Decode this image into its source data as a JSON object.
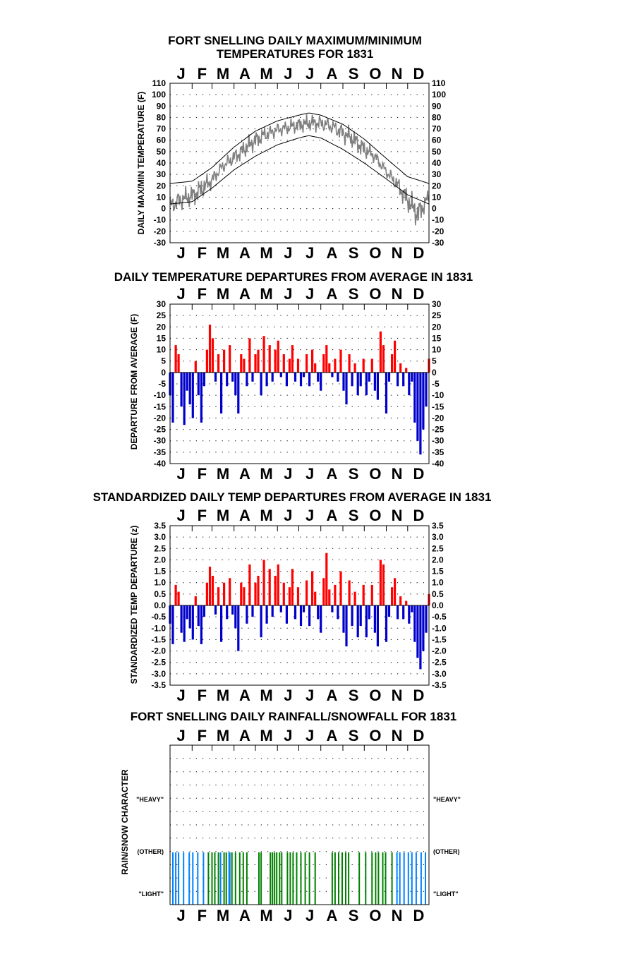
{
  "months": [
    "J",
    "F",
    "M",
    "A",
    "M",
    "J",
    "J",
    "A",
    "S",
    "O",
    "N",
    "D"
  ],
  "colors": {
    "warm": "#ff0000",
    "cold": "#0000cc",
    "trace": "#808080",
    "normal": "#000000",
    "rain": "#008000",
    "snow": "#0080ff",
    "grid": "#000000"
  },
  "chart_data": [
    {
      "type": "line",
      "title_line1": "FORT SNELLING DAILY MAXIMUM/MINIMUM",
      "title_line2": "TEMPERATURES FOR 1831",
      "ylabel": "DAILY MAX/MIN TEMPERATURE (F)",
      "ylim": [
        -30,
        110
      ],
      "yticks": [
        "110",
        "100",
        "90",
        "80",
        "70",
        "60",
        "50",
        "40",
        "30",
        "20",
        "10",
        "0",
        "-10",
        "-20",
        "-30"
      ],
      "ytick_values": [
        110,
        100,
        90,
        80,
        70,
        60,
        50,
        40,
        30,
        20,
        10,
        0,
        -10,
        -20,
        -30
      ],
      "grid": true,
      "series": [
        {
          "role": "daily max",
          "x_day": [
            1,
            15,
            32,
            46,
            60,
            74,
            91,
            105,
            121,
            135,
            152,
            166,
            182,
            196,
            213,
            227,
            244,
            258,
            274,
            288,
            305,
            319,
            335,
            349,
            365
          ],
          "values": [
            15,
            20,
            22,
            30,
            35,
            45,
            55,
            62,
            70,
            75,
            78,
            80,
            82,
            84,
            85,
            83,
            78,
            72,
            62,
            55,
            40,
            32,
            20,
            10,
            20
          ]
        },
        {
          "role": "daily min",
          "x_day": [
            1,
            15,
            32,
            46,
            60,
            74,
            91,
            105,
            121,
            135,
            152,
            166,
            182,
            196,
            213,
            227,
            244,
            258,
            274,
            288,
            305,
            319,
            335,
            349,
            365
          ],
          "values": [
            -10,
            -5,
            0,
            5,
            15,
            28,
            35,
            42,
            50,
            55,
            60,
            62,
            65,
            66,
            65,
            62,
            55,
            50,
            42,
            38,
            25,
            12,
            -5,
            -20,
            0
          ]
        },
        {
          "role": "normal max",
          "x_day": [
            1,
            32,
            60,
            91,
            121,
            152,
            182,
            196,
            213,
            244,
            274,
            305,
            335,
            365
          ],
          "values": [
            22,
            24,
            36,
            54,
            68,
            77,
            82,
            84,
            82,
            74,
            61,
            44,
            28,
            22
          ]
        },
        {
          "role": "normal min",
          "x_day": [
            1,
            32,
            60,
            91,
            121,
            152,
            182,
            196,
            213,
            244,
            274,
            305,
            335,
            365
          ],
          "values": [
            4,
            6,
            18,
            34,
            46,
            56,
            62,
            64,
            62,
            52,
            40,
            26,
            12,
            4
          ]
        }
      ]
    },
    {
      "type": "bar",
      "title": "DAILY TEMPERATURE DEPARTURES FROM AVERAGE IN 1831",
      "ylabel": "DEPARTURE FROM AVERAGE (F)",
      "ylim": [
        -40,
        30
      ],
      "yticks": [
        "30",
        "25",
        "20",
        "15",
        "10",
        "5",
        "0",
        "-5",
        "-10",
        "-15",
        "-20",
        "-25",
        "-30",
        "-35",
        "-40"
      ],
      "ytick_values": [
        30,
        25,
        20,
        15,
        10,
        5,
        0,
        -5,
        -10,
        -15,
        -20,
        -25,
        -30,
        -35,
        -40
      ],
      "grid": true,
      "x_day": [
        1,
        5,
        9,
        13,
        17,
        21,
        25,
        29,
        33,
        37,
        41,
        45,
        49,
        53,
        57,
        61,
        65,
        69,
        73,
        77,
        81,
        85,
        89,
        93,
        97,
        101,
        105,
        109,
        113,
        117,
        121,
        125,
        129,
        133,
        137,
        141,
        145,
        149,
        153,
        157,
        161,
        165,
        169,
        173,
        177,
        181,
        185,
        189,
        193,
        197,
        201,
        205,
        209,
        213,
        217,
        221,
        225,
        229,
        233,
        237,
        241,
        245,
        249,
        253,
        257,
        261,
        265,
        269,
        273,
        277,
        281,
        285,
        289,
        293,
        297,
        301,
        305,
        309,
        313,
        317,
        321,
        325,
        329,
        333,
        337,
        341,
        345,
        349,
        353,
        357,
        361,
        365
      ],
      "values": [
        -10,
        -22,
        12,
        8,
        -15,
        -23,
        -8,
        -14,
        -20,
        5,
        -10,
        -22,
        -6,
        10,
        21,
        15,
        -4,
        8,
        -18,
        10,
        -6,
        12,
        -4,
        -10,
        -18,
        8,
        6,
        -6,
        15,
        -4,
        8,
        10,
        -10,
        16,
        -6,
        12,
        -4,
        10,
        14,
        -2,
        8,
        -6,
        6,
        12,
        -4,
        6,
        -6,
        -2,
        8,
        -6,
        10,
        4,
        -4,
        -8,
        8,
        12,
        4,
        -2,
        6,
        -4,
        10,
        -8,
        -14,
        8,
        -6,
        4,
        -10,
        -6,
        6,
        -10,
        -4,
        6,
        -8,
        -12,
        18,
        12,
        -18,
        -4,
        8,
        14,
        -6,
        4,
        -6,
        2,
        -10,
        -4,
        -22,
        -30,
        -36,
        -25,
        -15,
        6
      ]
    },
    {
      "type": "bar",
      "title": "STANDARDIZED DAILY TEMP DEPARTURES FROM AVERAGE IN 1831",
      "ylabel": "STANDARDIZED TEMP DEPARTURE (z)",
      "ylim": [
        -3.5,
        3.5
      ],
      "yticks": [
        "3.5",
        "3.0",
        "2.5",
        "2.0",
        "1.5",
        "1.0",
        "0.5",
        "0.0",
        "-0.5",
        "-1.0",
        "-1.5",
        "-2.0",
        "-2.5",
        "-3.0",
        "-3.5"
      ],
      "ytick_values": [
        3.5,
        3.0,
        2.5,
        2.0,
        1.5,
        1.0,
        0.5,
        0.0,
        -0.5,
        -1.0,
        -1.5,
        -2.0,
        -2.5,
        -3.0,
        -3.5
      ],
      "grid": true,
      "x_day": [
        1,
        5,
        9,
        13,
        17,
        21,
        25,
        29,
        33,
        37,
        41,
        45,
        49,
        53,
        57,
        61,
        65,
        69,
        73,
        77,
        81,
        85,
        89,
        93,
        97,
        101,
        105,
        109,
        113,
        117,
        121,
        125,
        129,
        133,
        137,
        141,
        145,
        149,
        153,
        157,
        161,
        165,
        169,
        173,
        177,
        181,
        185,
        189,
        193,
        197,
        201,
        205,
        209,
        213,
        217,
        221,
        225,
        229,
        233,
        237,
        241,
        245,
        249,
        253,
        257,
        261,
        265,
        269,
        273,
        277,
        281,
        285,
        289,
        293,
        297,
        301,
        305,
        309,
        313,
        317,
        321,
        325,
        329,
        333,
        337,
        341,
        345,
        349,
        353,
        357,
        361,
        365
      ],
      "values": [
        -0.8,
        -1.7,
        0.9,
        0.6,
        -1.2,
        -1.6,
        -0.6,
        -1.0,
        -1.5,
        0.4,
        -0.9,
        -1.7,
        -0.5,
        1.0,
        1.7,
        1.3,
        -0.4,
        0.8,
        -1.6,
        1.0,
        -0.6,
        1.2,
        -0.4,
        -1.0,
        -2.0,
        1.0,
        0.8,
        -0.8,
        1.8,
        -0.5,
        1.0,
        1.3,
        -1.4,
        2.0,
        -0.8,
        1.6,
        -0.5,
        1.3,
        1.8,
        -0.3,
        1.0,
        -0.8,
        0.8,
        1.6,
        -0.6,
        0.8,
        -0.9,
        -0.3,
        1.1,
        -0.9,
        1.5,
        0.6,
        -0.6,
        -1.2,
        1.2,
        2.3,
        0.7,
        -0.3,
        0.9,
        -0.6,
        1.5,
        -1.2,
        -1.8,
        1.1,
        -0.9,
        0.6,
        -1.4,
        -0.9,
        0.9,
        -1.4,
        -0.6,
        0.9,
        -1.2,
        -1.8,
        2.0,
        1.8,
        -1.6,
        -0.5,
        0.8,
        1.2,
        -0.6,
        0.4,
        -0.6,
        0.2,
        -0.8,
        -0.3,
        -1.6,
        -2.3,
        -2.8,
        -2.0,
        -1.2,
        0.5
      ]
    },
    {
      "type": "bar",
      "title": "FORT SNELLING DAILY RAINFALL/SNOWFALL FOR 1831",
      "ylabel": "RAIN/SNOW CHARACTER",
      "category_labels": [
        "\"HEAVY\"",
        "(OTHER)",
        "\"LIGHT\""
      ],
      "category_labels_right": [
        "\"HEAVY\"",
        "(OTHER)",
        "\"LIGHT\""
      ],
      "grid": true,
      "events": [
        {
          "day": 5,
          "kind": "snow"
        },
        {
          "day": 9,
          "kind": "snow"
        },
        {
          "day": 13,
          "kind": "snow"
        },
        {
          "day": 20,
          "kind": "snow"
        },
        {
          "day": 28,
          "kind": "snow"
        },
        {
          "day": 33,
          "kind": "snow"
        },
        {
          "day": 40,
          "kind": "snow"
        },
        {
          "day": 48,
          "kind": "snow"
        },
        {
          "day": 55,
          "kind": "rain"
        },
        {
          "day": 60,
          "kind": "rain"
        },
        {
          "day": 64,
          "kind": "rain"
        },
        {
          "day": 69,
          "kind": "rain"
        },
        {
          "day": 72,
          "kind": "snow"
        },
        {
          "day": 77,
          "kind": "rain"
        },
        {
          "day": 80,
          "kind": "rain"
        },
        {
          "day": 84,
          "kind": "snow"
        },
        {
          "day": 85,
          "kind": "snow"
        },
        {
          "day": 88,
          "kind": "rain"
        },
        {
          "day": 93,
          "kind": "rain"
        },
        {
          "day": 99,
          "kind": "rain"
        },
        {
          "day": 104,
          "kind": "rain"
        },
        {
          "day": 109,
          "kind": "rain"
        },
        {
          "day": 126,
          "kind": "rain"
        },
        {
          "day": 129,
          "kind": "rain"
        },
        {
          "day": 142,
          "kind": "rain"
        },
        {
          "day": 145,
          "kind": "rain"
        },
        {
          "day": 148,
          "kind": "rain"
        },
        {
          "day": 151,
          "kind": "rain"
        },
        {
          "day": 155,
          "kind": "rain"
        },
        {
          "day": 158,
          "kind": "rain"
        },
        {
          "day": 166,
          "kind": "rain"
        },
        {
          "day": 170,
          "kind": "rain"
        },
        {
          "day": 174,
          "kind": "rain"
        },
        {
          "day": 179,
          "kind": "rain"
        },
        {
          "day": 185,
          "kind": "rain"
        },
        {
          "day": 191,
          "kind": "rain"
        },
        {
          "day": 197,
          "kind": "rain"
        },
        {
          "day": 205,
          "kind": "rain"
        },
        {
          "day": 229,
          "kind": "rain"
        },
        {
          "day": 233,
          "kind": "rain"
        },
        {
          "day": 238,
          "kind": "rain"
        },
        {
          "day": 243,
          "kind": "rain"
        },
        {
          "day": 248,
          "kind": "rain"
        },
        {
          "day": 252,
          "kind": "rain"
        },
        {
          "day": 267,
          "kind": "rain"
        },
        {
          "day": 276,
          "kind": "rain"
        },
        {
          "day": 285,
          "kind": "rain"
        },
        {
          "day": 290,
          "kind": "rain"
        },
        {
          "day": 294,
          "kind": "rain"
        },
        {
          "day": 300,
          "kind": "rain"
        },
        {
          "day": 304,
          "kind": "rain"
        },
        {
          "day": 313,
          "kind": "rain"
        },
        {
          "day": 320,
          "kind": "snow"
        },
        {
          "day": 324,
          "kind": "snow"
        },
        {
          "day": 330,
          "kind": "snow"
        },
        {
          "day": 336,
          "kind": "snow"
        },
        {
          "day": 341,
          "kind": "snow"
        },
        {
          "day": 347,
          "kind": "snow"
        },
        {
          "day": 354,
          "kind": "snow"
        },
        {
          "day": 360,
          "kind": "snow"
        }
      ]
    }
  ]
}
